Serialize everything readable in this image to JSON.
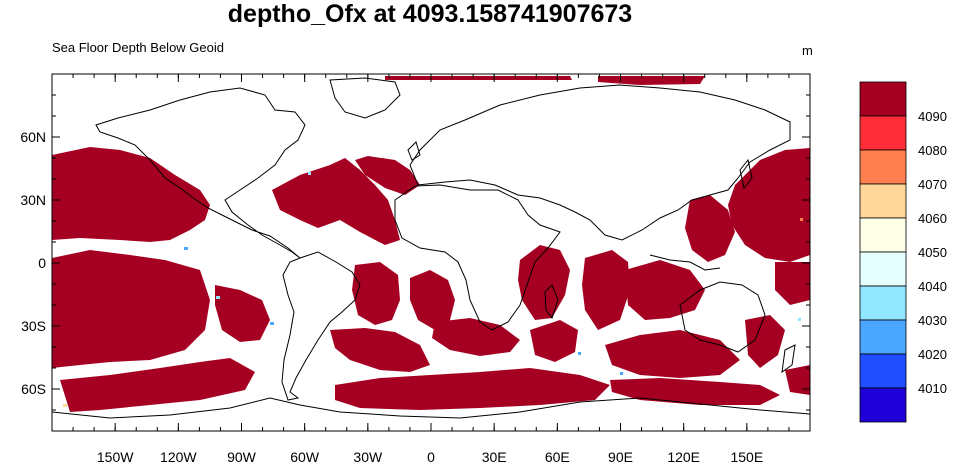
{
  "title": "deptho_Ofx at 4093.158741907673",
  "subtitle": "Sea Floor Depth Below Geoid",
  "units": "m",
  "colors": {
    "ocean_deep": "#a50021",
    "land": "#ffffff",
    "coast": "#000000"
  },
  "map": {
    "projection": "cylindrical-equidistant",
    "lon_range": [
      -180,
      180
    ],
    "lat_range": [
      -80,
      90
    ],
    "lon_ticks": [
      {
        "value": -150,
        "label": "150W"
      },
      {
        "value": -120,
        "label": "120W"
      },
      {
        "value": -90,
        "label": "90W"
      },
      {
        "value": -60,
        "label": "60W"
      },
      {
        "value": -30,
        "label": "30W"
      },
      {
        "value": 0,
        "label": "0"
      },
      {
        "value": 30,
        "label": "30E"
      },
      {
        "value": 60,
        "label": "60E"
      },
      {
        "value": 90,
        "label": "90E"
      },
      {
        "value": 120,
        "label": "120E"
      },
      {
        "value": 150,
        "label": "150E"
      }
    ],
    "lat_ticks": [
      {
        "value": 60,
        "label": "60N"
      },
      {
        "value": 30,
        "label": "30N"
      },
      {
        "value": 0,
        "label": "0"
      },
      {
        "value": -30,
        "label": "30S"
      },
      {
        "value": -60,
        "label": "60S"
      }
    ]
  },
  "colorbar": {
    "levels": [
      {
        "color": "#a50021",
        "label": "4090"
      },
      {
        "color": "#ff2d3a",
        "label": "4080"
      },
      {
        "color": "#ff7f50",
        "label": "4070"
      },
      {
        "color": "#ffd79a",
        "label": "4060"
      },
      {
        "color": "#fffee6",
        "label": "4050"
      },
      {
        "color": "#e6ffff",
        "label": "4040"
      },
      {
        "color": "#91e7ff",
        "label": "4030"
      },
      {
        "color": "#4aa6ff",
        "label": "4020"
      },
      {
        "color": "#1f4dff",
        "label": "4010"
      },
      {
        "color": "#1f00d9",
        "label": ""
      }
    ]
  }
}
